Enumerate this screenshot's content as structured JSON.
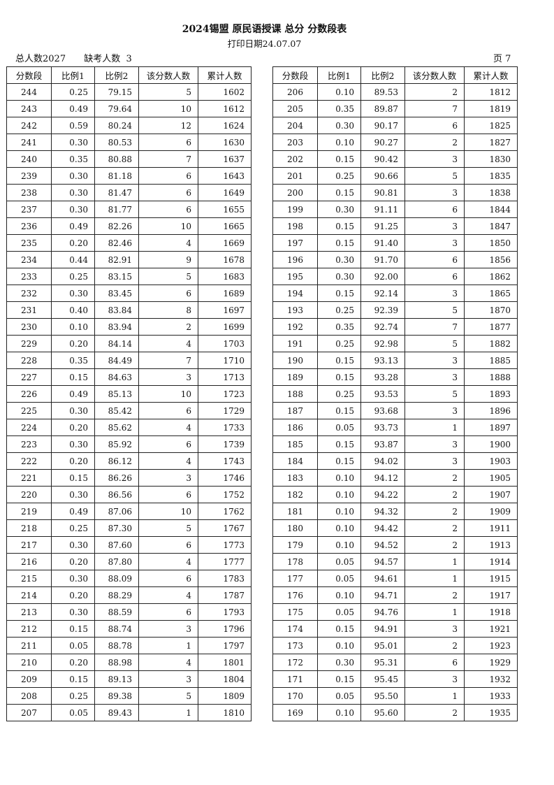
{
  "header": {
    "title": "2024锡盟 原民语授课 总分 分数段表",
    "print_date": "打印日期24.07.07",
    "total": "总人数2027",
    "absent": "缺考人数  3",
    "page": "页 7"
  },
  "columns": [
    "分数段",
    "比例1",
    "比例2",
    "该分数人数",
    "累计人数"
  ],
  "left_rows": [
    [
      "244",
      "0.25",
      "79.15",
      "5",
      "1602"
    ],
    [
      "243",
      "0.49",
      "79.64",
      "10",
      "1612"
    ],
    [
      "242",
      "0.59",
      "80.24",
      "12",
      "1624"
    ],
    [
      "241",
      "0.30",
      "80.53",
      "6",
      "1630"
    ],
    [
      "240",
      "0.35",
      "80.88",
      "7",
      "1637"
    ],
    [
      "239",
      "0.30",
      "81.18",
      "6",
      "1643"
    ],
    [
      "238",
      "0.30",
      "81.47",
      "6",
      "1649"
    ],
    [
      "237",
      "0.30",
      "81.77",
      "6",
      "1655"
    ],
    [
      "236",
      "0.49",
      "82.26",
      "10",
      "1665"
    ],
    [
      "235",
      "0.20",
      "82.46",
      "4",
      "1669"
    ],
    [
      "234",
      "0.44",
      "82.91",
      "9",
      "1678"
    ],
    [
      "233",
      "0.25",
      "83.15",
      "5",
      "1683"
    ],
    [
      "232",
      "0.30",
      "83.45",
      "6",
      "1689"
    ],
    [
      "231",
      "0.40",
      "83.84",
      "8",
      "1697"
    ],
    [
      "230",
      "0.10",
      "83.94",
      "2",
      "1699"
    ],
    [
      "229",
      "0.20",
      "84.14",
      "4",
      "1703"
    ],
    [
      "228",
      "0.35",
      "84.49",
      "7",
      "1710"
    ],
    [
      "227",
      "0.15",
      "84.63",
      "3",
      "1713"
    ],
    [
      "226",
      "0.49",
      "85.13",
      "10",
      "1723"
    ],
    [
      "225",
      "0.30",
      "85.42",
      "6",
      "1729"
    ],
    [
      "224",
      "0.20",
      "85.62",
      "4",
      "1733"
    ],
    [
      "223",
      "0.30",
      "85.92",
      "6",
      "1739"
    ],
    [
      "222",
      "0.20",
      "86.12",
      "4",
      "1743"
    ],
    [
      "221",
      "0.15",
      "86.26",
      "3",
      "1746"
    ],
    [
      "220",
      "0.30",
      "86.56",
      "6",
      "1752"
    ],
    [
      "219",
      "0.49",
      "87.06",
      "10",
      "1762"
    ],
    [
      "218",
      "0.25",
      "87.30",
      "5",
      "1767"
    ],
    [
      "217",
      "0.30",
      "87.60",
      "6",
      "1773"
    ],
    [
      "216",
      "0.20",
      "87.80",
      "4",
      "1777"
    ],
    [
      "215",
      "0.30",
      "88.09",
      "6",
      "1783"
    ],
    [
      "214",
      "0.20",
      "88.29",
      "4",
      "1787"
    ],
    [
      "213",
      "0.30",
      "88.59",
      "6",
      "1793"
    ],
    [
      "212",
      "0.15",
      "88.74",
      "3",
      "1796"
    ],
    [
      "211",
      "0.05",
      "88.78",
      "1",
      "1797"
    ],
    [
      "210",
      "0.20",
      "88.98",
      "4",
      "1801"
    ],
    [
      "209",
      "0.15",
      "89.13",
      "3",
      "1804"
    ],
    [
      "208",
      "0.25",
      "89.38",
      "5",
      "1809"
    ],
    [
      "207",
      "0.05",
      "89.43",
      "1",
      "1810"
    ]
  ],
  "right_rows": [
    [
      "206",
      "0.10",
      "89.53",
      "2",
      "1812"
    ],
    [
      "205",
      "0.35",
      "89.87",
      "7",
      "1819"
    ],
    [
      "204",
      "0.30",
      "90.17",
      "6",
      "1825"
    ],
    [
      "203",
      "0.10",
      "90.27",
      "2",
      "1827"
    ],
    [
      "202",
      "0.15",
      "90.42",
      "3",
      "1830"
    ],
    [
      "201",
      "0.25",
      "90.66",
      "5",
      "1835"
    ],
    [
      "200",
      "0.15",
      "90.81",
      "3",
      "1838"
    ],
    [
      "199",
      "0.30",
      "91.11",
      "6",
      "1844"
    ],
    [
      "198",
      "0.15",
      "91.25",
      "3",
      "1847"
    ],
    [
      "197",
      "0.15",
      "91.40",
      "3",
      "1850"
    ],
    [
      "196",
      "0.30",
      "91.70",
      "6",
      "1856"
    ],
    [
      "195",
      "0.30",
      "92.00",
      "6",
      "1862"
    ],
    [
      "194",
      "0.15",
      "92.14",
      "3",
      "1865"
    ],
    [
      "193",
      "0.25",
      "92.39",
      "5",
      "1870"
    ],
    [
      "192",
      "0.35",
      "92.74",
      "7",
      "1877"
    ],
    [
      "191",
      "0.25",
      "92.98",
      "5",
      "1882"
    ],
    [
      "190",
      "0.15",
      "93.13",
      "3",
      "1885"
    ],
    [
      "189",
      "0.15",
      "93.28",
      "3",
      "1888"
    ],
    [
      "188",
      "0.25",
      "93.53",
      "5",
      "1893"
    ],
    [
      "187",
      "0.15",
      "93.68",
      "3",
      "1896"
    ],
    [
      "186",
      "0.05",
      "93.73",
      "1",
      "1897"
    ],
    [
      "185",
      "0.15",
      "93.87",
      "3",
      "1900"
    ],
    [
      "184",
      "0.15",
      "94.02",
      "3",
      "1903"
    ],
    [
      "183",
      "0.10",
      "94.12",
      "2",
      "1905"
    ],
    [
      "182",
      "0.10",
      "94.22",
      "2",
      "1907"
    ],
    [
      "181",
      "0.10",
      "94.32",
      "2",
      "1909"
    ],
    [
      "180",
      "0.10",
      "94.42",
      "2",
      "1911"
    ],
    [
      "179",
      "0.10",
      "94.52",
      "2",
      "1913"
    ],
    [
      "178",
      "0.05",
      "94.57",
      "1",
      "1914"
    ],
    [
      "177",
      "0.05",
      "94.61",
      "1",
      "1915"
    ],
    [
      "176",
      "0.10",
      "94.71",
      "2",
      "1917"
    ],
    [
      "175",
      "0.05",
      "94.76",
      "1",
      "1918"
    ],
    [
      "174",
      "0.15",
      "94.91",
      "3",
      "1921"
    ],
    [
      "173",
      "0.10",
      "95.01",
      "2",
      "1923"
    ],
    [
      "172",
      "0.30",
      "95.31",
      "6",
      "1929"
    ],
    [
      "171",
      "0.15",
      "95.45",
      "3",
      "1932"
    ],
    [
      "170",
      "0.05",
      "95.50",
      "1",
      "1933"
    ],
    [
      "169",
      "0.10",
      "95.60",
      "2",
      "1935"
    ]
  ]
}
